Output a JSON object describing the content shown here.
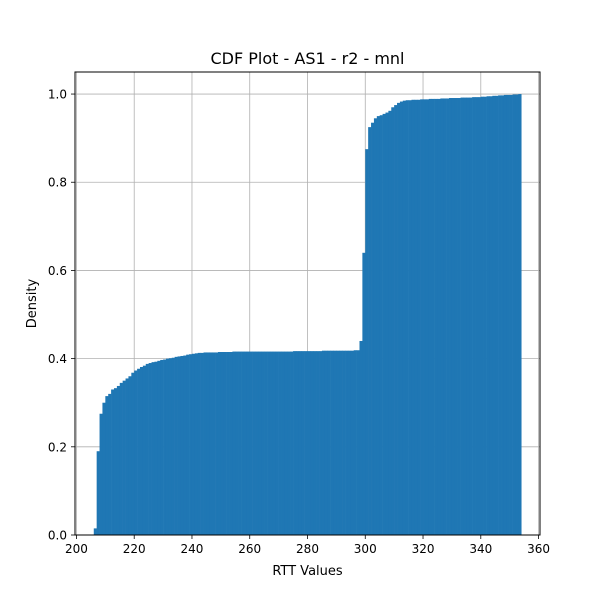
{
  "chart_data": {
    "type": "bar",
    "subtype": "cumulative histogram",
    "title": "CDF Plot - AS1 - r2 - mnl",
    "xlabel": "RTT Values",
    "ylabel": "Density",
    "xlim": [
      199.5,
      360.5
    ],
    "ylim": [
      0.0,
      1.05
    ],
    "xticks": [
      200,
      220,
      240,
      260,
      280,
      300,
      320,
      340,
      360
    ],
    "yticks": [
      0.0,
      0.2,
      0.4,
      0.6,
      0.8,
      1.0
    ],
    "xtick_labels": [
      "200",
      "220",
      "240",
      "260",
      "280",
      "300",
      "320",
      "340",
      "360"
    ],
    "ytick_labels": [
      "0.0",
      "0.2",
      "0.4",
      "0.6",
      "0.8",
      "1.0"
    ],
    "grid": true,
    "bar_color": "#1f77b4",
    "bin_width": 1.0,
    "bins_start": 206.0,
    "values": [
      0.015,
      0.19,
      0.275,
      0.3,
      0.315,
      0.32,
      0.33,
      0.333,
      0.338,
      0.345,
      0.35,
      0.355,
      0.36,
      0.368,
      0.373,
      0.377,
      0.381,
      0.384,
      0.388,
      0.39,
      0.392,
      0.393,
      0.395,
      0.397,
      0.398,
      0.4,
      0.401,
      0.402,
      0.404,
      0.405,
      0.406,
      0.407,
      0.409,
      0.41,
      0.411,
      0.412,
      0.413,
      0.413,
      0.414,
      0.414,
      0.414,
      0.414,
      0.414,
      0.415,
      0.415,
      0.415,
      0.415,
      0.415,
      0.416,
      0.416,
      0.416,
      0.416,
      0.416,
      0.416,
      0.416,
      0.416,
      0.416,
      0.416,
      0.416,
      0.416,
      0.416,
      0.416,
      0.416,
      0.416,
      0.416,
      0.416,
      0.416,
      0.416,
      0.416,
      0.417,
      0.417,
      0.417,
      0.417,
      0.417,
      0.417,
      0.417,
      0.417,
      0.417,
      0.417,
      0.418,
      0.418,
      0.418,
      0.418,
      0.418,
      0.418,
      0.418,
      0.418,
      0.418,
      0.418,
      0.418,
      0.419,
      0.419,
      0.44,
      0.64,
      0.875,
      0.925,
      0.935,
      0.945,
      0.95,
      0.952,
      0.955,
      0.958,
      0.962,
      0.97,
      0.975,
      0.98,
      0.983,
      0.985,
      0.986,
      0.986,
      0.987,
      0.987,
      0.987,
      0.988,
      0.988,
      0.988,
      0.989,
      0.989,
      0.989,
      0.989,
      0.99,
      0.99,
      0.99,
      0.991,
      0.991,
      0.991,
      0.991,
      0.992,
      0.992,
      0.992,
      0.992,
      0.993,
      0.993,
      0.993,
      0.994,
      0.994,
      0.995,
      0.995,
      0.996,
      0.996,
      0.997,
      0.997,
      0.998,
      0.998,
      0.998,
      0.999,
      0.999,
      1.0
    ]
  }
}
